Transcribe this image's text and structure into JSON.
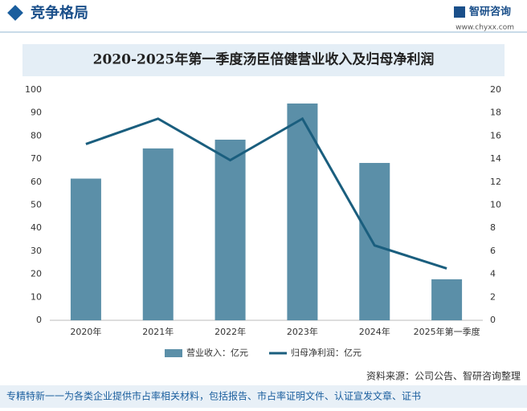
{
  "header": {
    "title": "竞争格局",
    "brand": "智研咨询",
    "url": "www.chyxx.com"
  },
  "chart_data": {
    "type": "bar-line",
    "title": "2020-2025年第一季度汤臣倍健营业收入及归母净利润",
    "categories": [
      "2020年",
      "2021年",
      "2022年",
      "2023年",
      "2024年",
      "2025年第一季度"
    ],
    "series": [
      {
        "name": "营业收入：亿元",
        "type": "bar",
        "color": "#5b8fa8",
        "values": [
          61.5,
          74.6,
          78.4,
          94.1,
          68.3,
          17.8
        ]
      },
      {
        "name": "归母净利润：亿元",
        "type": "line",
        "axis": "y2",
        "color": "#1a5e7e",
        "values": [
          15.3,
          17.5,
          13.9,
          17.5,
          6.5,
          4.5
        ]
      }
    ],
    "ylim": [
      0,
      100
    ],
    "yticks": [
      0,
      10,
      20,
      30,
      40,
      50,
      60,
      70,
      80,
      90,
      100
    ],
    "y2lim": [
      0,
      20
    ],
    "y2ticks": [
      0,
      2,
      4,
      6,
      8,
      10,
      12,
      14,
      16,
      18,
      20
    ],
    "legend": "bottom"
  },
  "source": "资料来源：公司公告、智研咨询整理",
  "footer": "专精特新一一为各类企业提供市占率相关材料，包括报告、市占率证明文件、认证宣发文章、证书"
}
